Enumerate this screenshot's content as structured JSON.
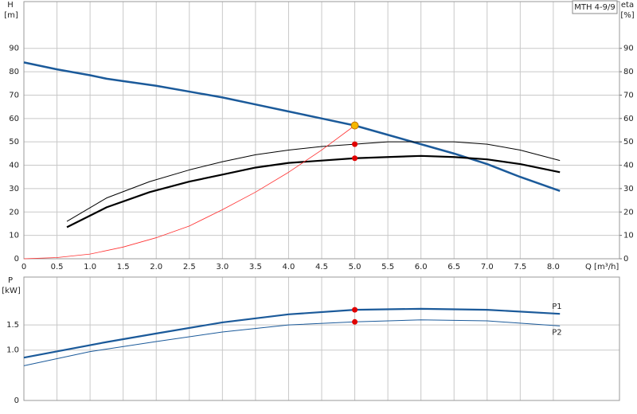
{
  "chart_data": [
    {
      "type": "line",
      "y_label": "H",
      "y_unit": "[m]",
      "y2_label": "eta",
      "y2_unit": "[%]",
      "x_label": "Q [m³/h]",
      "annotation": "MTH 4-9/9",
      "grid": true,
      "xlim": [
        0,
        9
      ],
      "xticks": [
        0,
        0.5,
        {
          "value": 1,
          "label": "1.0"
        },
        1.5,
        {
          "value": 2,
          "label": "2.0"
        },
        2.5,
        {
          "value": 3,
          "label": "3.0"
        },
        3.5,
        {
          "value": 4,
          "label": "4.0"
        },
        4.5,
        {
          "value": 5,
          "label": "5.0"
        },
        5.5,
        {
          "value": 6,
          "label": "6.0"
        },
        6.5,
        {
          "value": 7,
          "label": "7.0"
        },
        7.5,
        {
          "value": 8,
          "label": "8.0"
        }
      ],
      "ylim": [
        0,
        110
      ],
      "yticks": [
        0,
        10,
        20,
        30,
        40,
        50,
        60,
        70,
        80,
        90
      ],
      "y2lim": [
        0,
        110
      ],
      "y2ticks": [
        0,
        10,
        20,
        30,
        40,
        50,
        60,
        70,
        80,
        90
      ],
      "series": [
        {
          "color": "#1b5a9a",
          "width": 2.5,
          "x": [
            0,
            0.5,
            1.0,
            1.25,
            1.5,
            2.0,
            2.5,
            3.0,
            3.5,
            4.0,
            4.5,
            5.0,
            5.5,
            6.0,
            6.5,
            7.0,
            7.5,
            8.1
          ],
          "values": [
            84,
            81,
            78.5,
            77,
            76,
            74,
            71.5,
            69,
            66,
            63,
            60,
            57,
            53,
            49,
            45,
            40.5,
            35,
            29
          ]
        },
        {
          "color": "#000000",
          "width": 1,
          "axis": "y2",
          "x": [
            0.65,
            1.25,
            1.9,
            2.5,
            3.0,
            3.5,
            4.0,
            4.5,
            5.0,
            5.5,
            6.0,
            6.5,
            7.0,
            7.5,
            8.1
          ],
          "values": [
            16,
            26,
            33,
            38,
            41.5,
            44.5,
            46.5,
            48,
            49,
            50,
            50,
            50,
            49,
            46.5,
            42
          ]
        },
        {
          "color": "#000000",
          "width": 2.2,
          "axis": "y2",
          "x": [
            0.65,
            1.25,
            1.9,
            2.5,
            3.0,
            3.5,
            4.0,
            4.5,
            5.0,
            5.5,
            6.0,
            6.5,
            7.0,
            7.5,
            8.1
          ],
          "values": [
            13.5,
            22,
            28.5,
            33,
            36,
            39,
            41,
            42,
            43,
            43.5,
            44,
            43.5,
            42.5,
            40.5,
            37
          ]
        },
        {
          "color": "#ff3030",
          "width": 0.8,
          "x": [
            0,
            0.5,
            1.0,
            1.5,
            2.0,
            2.5,
            3.0,
            3.5,
            4.0,
            4.5,
            5.0
          ],
          "values": [
            0,
            0.5,
            2,
            5,
            9,
            14,
            21,
            28.5,
            37,
            46.5,
            57
          ]
        }
      ],
      "points": [
        {
          "x": 5.0,
          "y": 57,
          "color": "#f5b800"
        },
        {
          "x": 5.0,
          "y": 49,
          "color": "#e00000"
        },
        {
          "x": 5.0,
          "y": 43,
          "color": "#e00000"
        }
      ]
    },
    {
      "type": "line",
      "y_label": "P",
      "y_unit": "[kW]",
      "grid": true,
      "xlim": [
        0,
        9
      ],
      "ylim": [
        0,
        2.45
      ],
      "yticks": [
        0,
        {
          "value": 1,
          "label": "1.0"
        },
        1.5
      ],
      "series": [
        {
          "name": "P1",
          "color": "#1b5a9a",
          "width": 2.2,
          "x": [
            0,
            1.25,
            2.0,
            3.0,
            4.0,
            5.0,
            6.0,
            7.0,
            8.1
          ],
          "values": [
            0.85,
            1.16,
            1.33,
            1.55,
            1.71,
            1.8,
            1.82,
            1.8,
            1.72
          ]
        },
        {
          "name": "P2",
          "color": "#1b5a9a",
          "width": 1,
          "x": [
            0,
            1.0,
            2.0,
            3.0,
            4.0,
            5.0,
            6.0,
            7.0,
            8.1
          ],
          "values": [
            0.69,
            0.97,
            1.17,
            1.36,
            1.5,
            1.56,
            1.6,
            1.58,
            1.48
          ]
        }
      ],
      "points": [
        {
          "x": 5.0,
          "y": 1.8,
          "color": "#e00000"
        },
        {
          "x": 5.0,
          "y": 1.56,
          "color": "#e00000"
        }
      ]
    }
  ]
}
